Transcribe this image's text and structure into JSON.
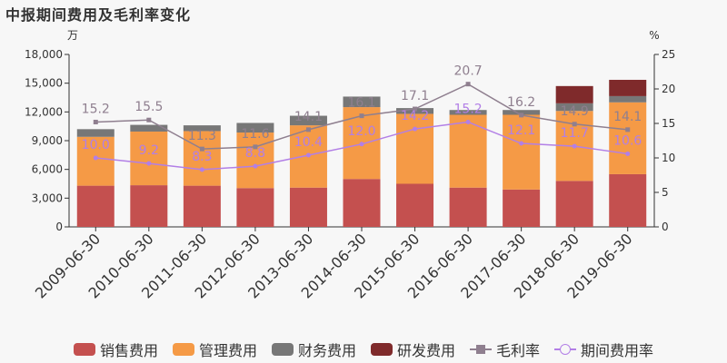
{
  "chart_data": {
    "type": "bar",
    "title": "中报期间费用及毛利率变化",
    "ylabel": "万",
    "y2label": "%",
    "ylim": [
      0,
      18000
    ],
    "y2lim": [
      0,
      25
    ],
    "yticks": [
      "0",
      "3,000",
      "6,000",
      "9,000",
      "12,000",
      "15,000",
      "18,000"
    ],
    "y2ticks": [
      "0",
      "5",
      "10",
      "15",
      "20",
      "25"
    ],
    "categories": [
      "2009-06-30",
      "2010-06-30",
      "2011-06-30",
      "2012-06-30",
      "2013-06-30",
      "2014-06-30",
      "2015-06-30",
      "2016-06-30",
      "2017-06-30",
      "2018-06-30",
      "2019-06-30"
    ],
    "series": [
      {
        "name": "销售费用",
        "type": "bar",
        "color": "#c4504f",
        "values": [
          4300,
          4350,
          4300,
          4050,
          4100,
          5000,
          4500,
          4100,
          3900,
          4800,
          5500
        ]
      },
      {
        "name": "管理费用",
        "type": "bar",
        "color": "#f59a46",
        "values": [
          5100,
          5600,
          5700,
          5800,
          6500,
          7500,
          7300,
          7600,
          7800,
          7300,
          7500
        ]
      },
      {
        "name": "财务费用",
        "type": "bar",
        "color": "#777777",
        "values": [
          800,
          700,
          600,
          1000,
          1000,
          1100,
          600,
          500,
          500,
          800,
          650
        ]
      },
      {
        "name": "研发费用",
        "type": "bar",
        "color": "#7f2a2b",
        "values": [
          0,
          0,
          0,
          0,
          0,
          0,
          0,
          0,
          0,
          1800,
          1700
        ]
      },
      {
        "name": "毛利率",
        "type": "line",
        "axis": "right",
        "color": "#8f7f8f",
        "marker": "square",
        "values": [
          15.2,
          15.5,
          11.3,
          11.6,
          14.1,
          16.1,
          17.1,
          20.7,
          16.2,
          14.9,
          14.1
        ],
        "labels": [
          "15.2",
          "15.5",
          "11.3",
          "11.6",
          "14.1",
          "16.1",
          "17.1",
          "20.7",
          "16.2",
          "14.9",
          "14.1"
        ]
      },
      {
        "name": "期间费用率",
        "type": "line",
        "axis": "right",
        "color": "#b27fe6",
        "marker": "circle",
        "values": [
          10.0,
          9.2,
          8.3,
          8.8,
          10.4,
          12.0,
          14.2,
          15.2,
          12.1,
          11.7,
          10.6
        ],
        "labels": [
          "10.0",
          "9.2",
          "8.3",
          "8.8",
          "10.4",
          "12.0",
          "14.2",
          "15.2",
          "12.1",
          "11.7",
          "10.6"
        ]
      }
    ],
    "legend_position": "bottom",
    "grid": false
  }
}
